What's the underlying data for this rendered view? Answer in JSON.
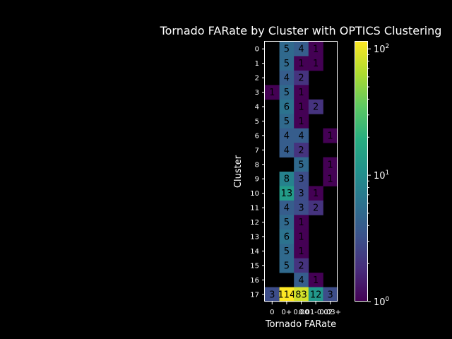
{
  "chart_data": {
    "type": "heatmap",
    "title": "Tornado FARate by Cluster with OPTICS Clustering",
    "xlabel": "Tornado FARate",
    "ylabel": "Cluster",
    "x_categories": [
      "0",
      "0+",
      "0.00",
      "0.02",
      "0.03+"
    ],
    "x_tick_labels": [
      "0",
      "0+",
      "0.00",
      "0.01-0.02",
      "0.03+"
    ],
    "y_categories": [
      "0",
      "1",
      "2",
      "3",
      "4",
      "5",
      "6",
      "7",
      "8",
      "9",
      "10",
      "11",
      "12",
      "13",
      "14",
      "15",
      "16",
      "17"
    ],
    "cells": [
      [
        null,
        5,
        4,
        1,
        null
      ],
      [
        null,
        5,
        1,
        1,
        null
      ],
      [
        null,
        4,
        2,
        null,
        null
      ],
      [
        1,
        5,
        1,
        null,
        null
      ],
      [
        null,
        6,
        1,
        2,
        null
      ],
      [
        null,
        5,
        1,
        null,
        null
      ],
      [
        null,
        4,
        4,
        null,
        1
      ],
      [
        null,
        4,
        2,
        null,
        null
      ],
      [
        null,
        null,
        5,
        null,
        1
      ],
      [
        null,
        8,
        3,
        null,
        1
      ],
      [
        null,
        13,
        3,
        1,
        null
      ],
      [
        null,
        4,
        3,
        2,
        null
      ],
      [
        null,
        5,
        1,
        null,
        null
      ],
      [
        null,
        6,
        1,
        null,
        null
      ],
      [
        null,
        5,
        1,
        null,
        null
      ],
      [
        null,
        5,
        2,
        null,
        null
      ],
      [
        null,
        null,
        4,
        1,
        null
      ],
      [
        3,
        114,
        83,
        12,
        3
      ]
    ],
    "colormap": "viridis",
    "color_scale": "log",
    "color_range": [
      1,
      114
    ],
    "colorbar_ticks": [
      1,
      10,
      100
    ],
    "colorbar_tick_labels": [
      "10^0",
      "10^1",
      "10^2"
    ]
  }
}
